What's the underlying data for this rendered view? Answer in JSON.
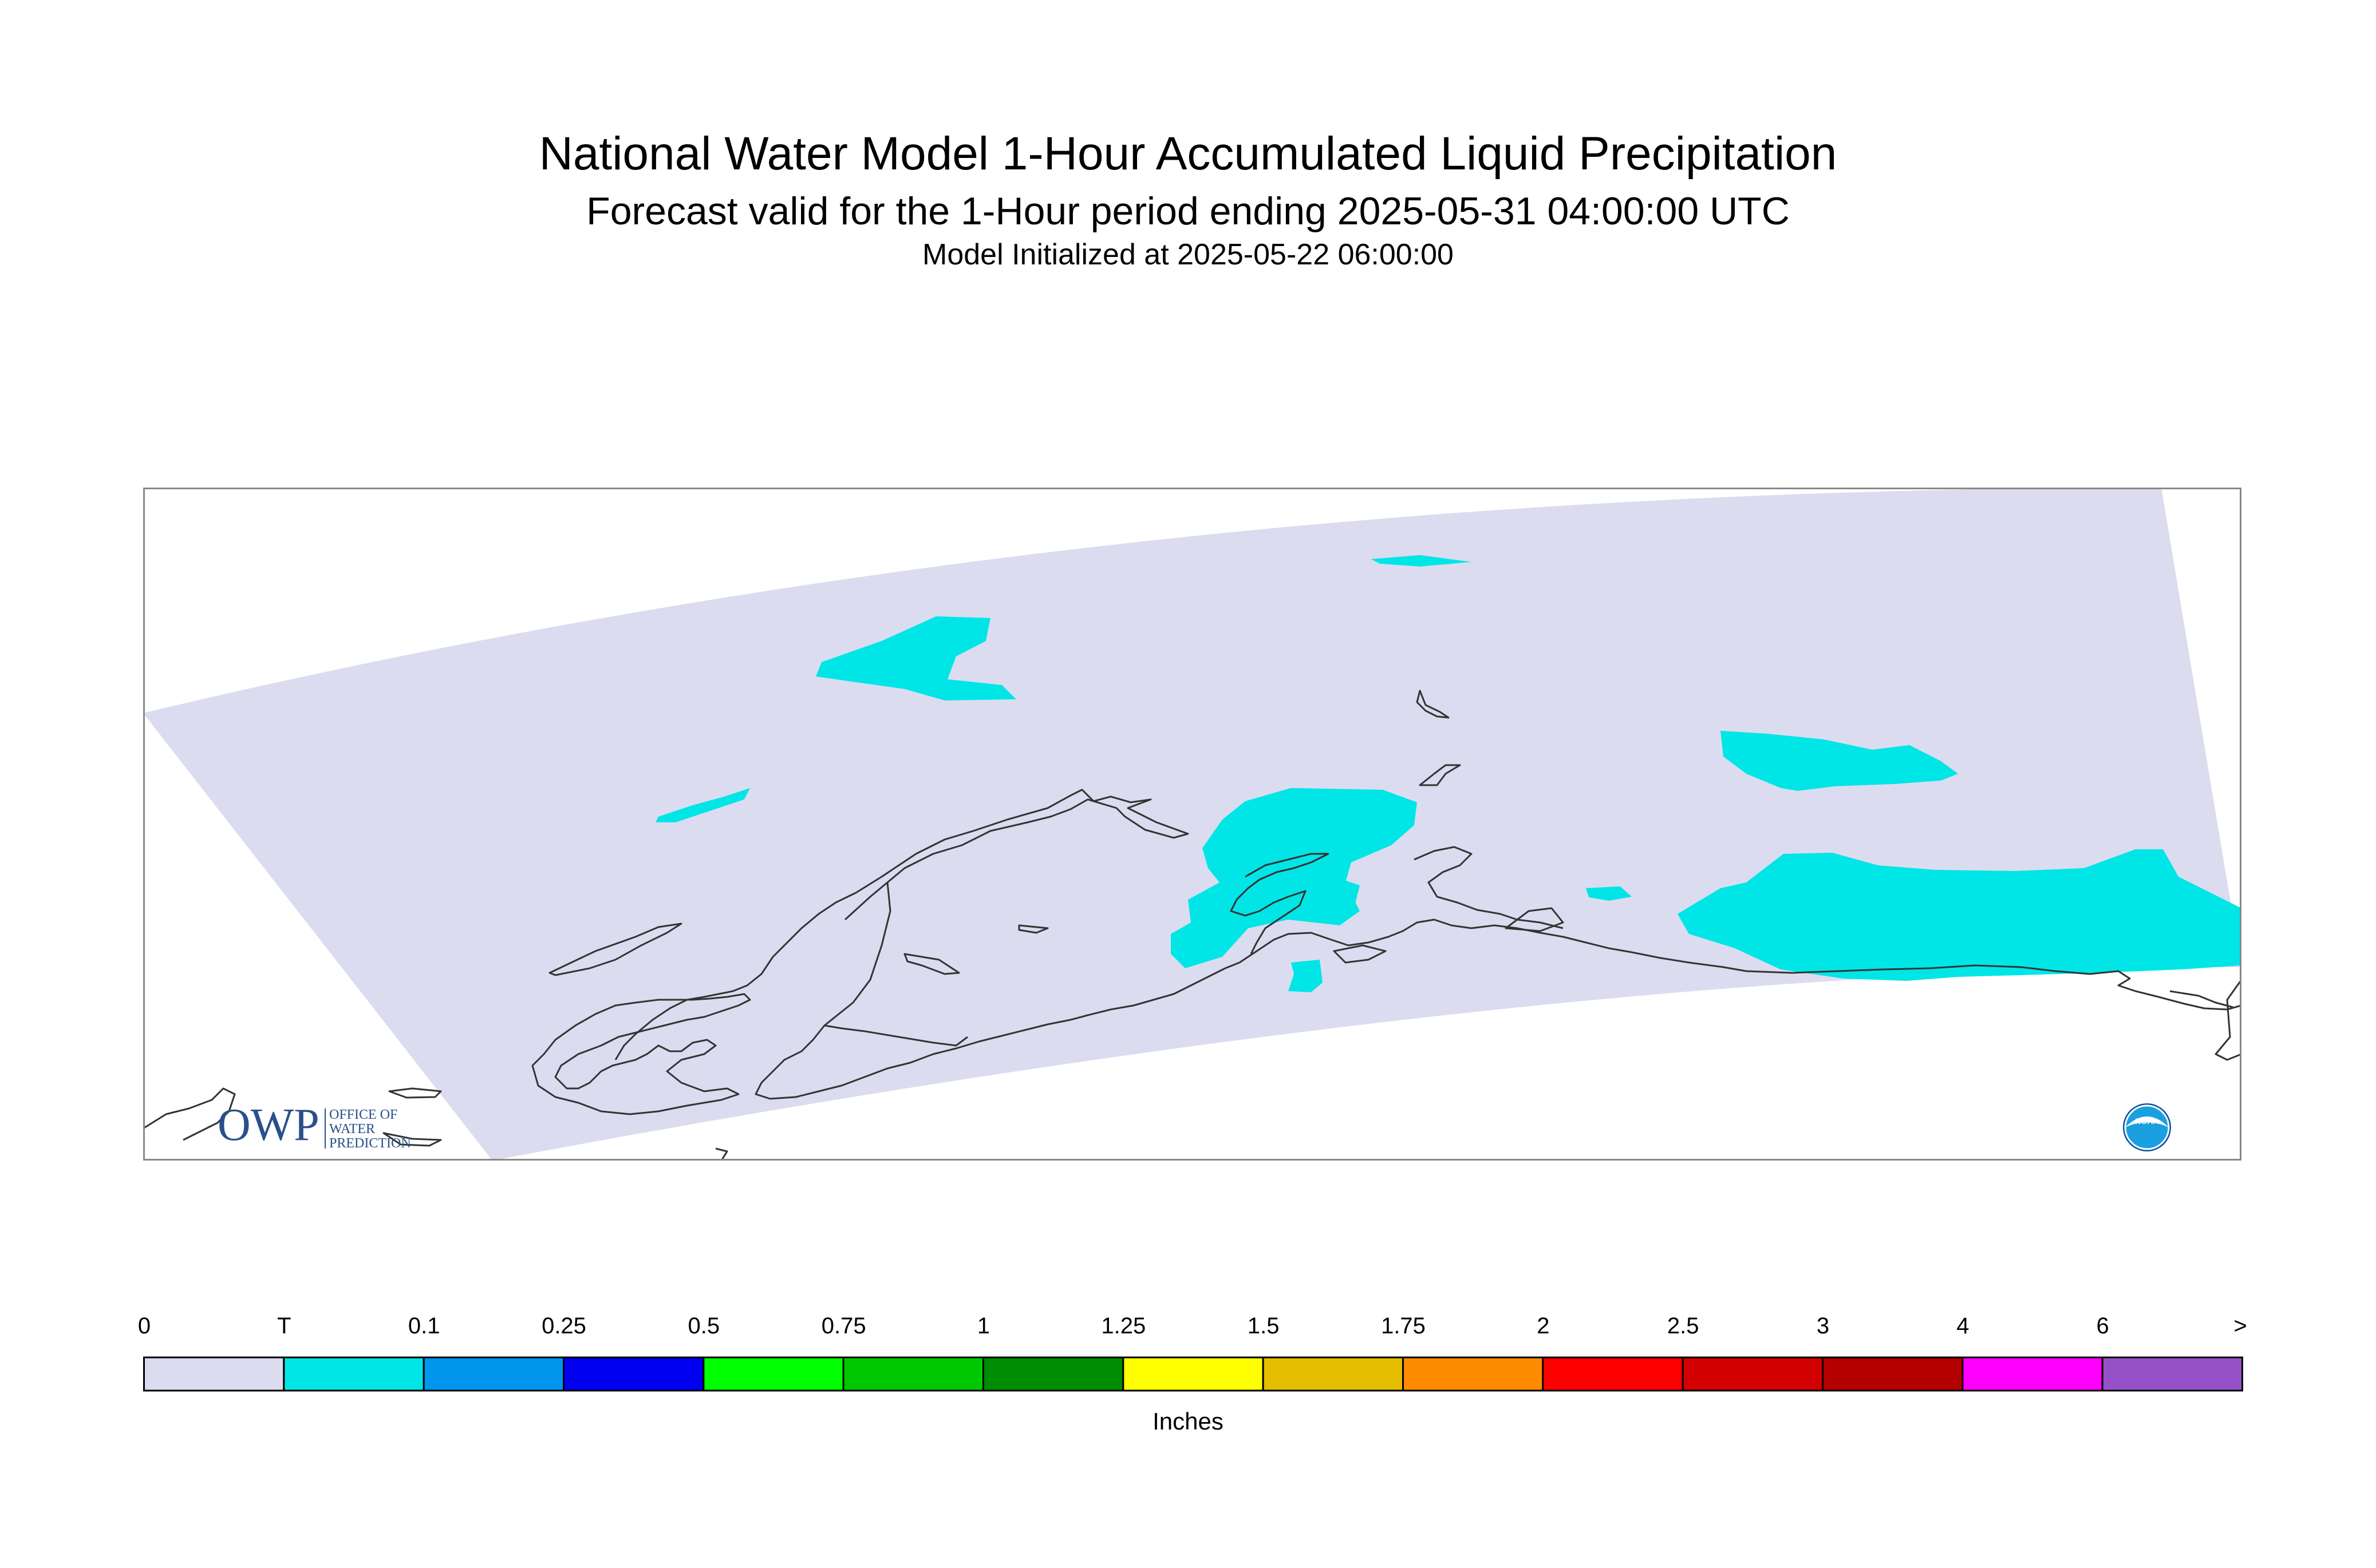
{
  "title": "National Water Model 1-Hour Accumulated Liquid Precipitation",
  "subtitle": "Forecast valid for the 1-Hour period ending 2025-05-31 04:00:00 UTC",
  "init_line": "Model Initialized at 2025-05-22 06:00:00",
  "logo": {
    "owp_text": "OWP",
    "owp_line1": "OFFICE OF",
    "owp_line2": "WATER",
    "owp_line3": "PREDICTION",
    "noaa_text": "NOAA"
  },
  "legend": {
    "units": "Inches",
    "labels": [
      "0",
      "T",
      "0.1",
      "0.25",
      "0.5",
      "0.75",
      "1",
      "1.25",
      "1.5",
      "1.75",
      "2",
      "2.5",
      "3",
      "4",
      "6",
      ">"
    ],
    "colors": [
      "#dcdcf0",
      "#00e6e6",
      "#0096ee",
      "#0000f0",
      "#00ff00",
      "#00c800",
      "#008c00",
      "#ffff00",
      "#e6be00",
      "#ff8c00",
      "#ff0000",
      "#d20000",
      "#b40000",
      "#ff00ff",
      "#9650c8"
    ]
  },
  "colors": {
    "domain_fill": "#dcdcf0",
    "precip_trace": "#00e6e6",
    "coastline": "#333333",
    "frame": "#888888"
  }
}
